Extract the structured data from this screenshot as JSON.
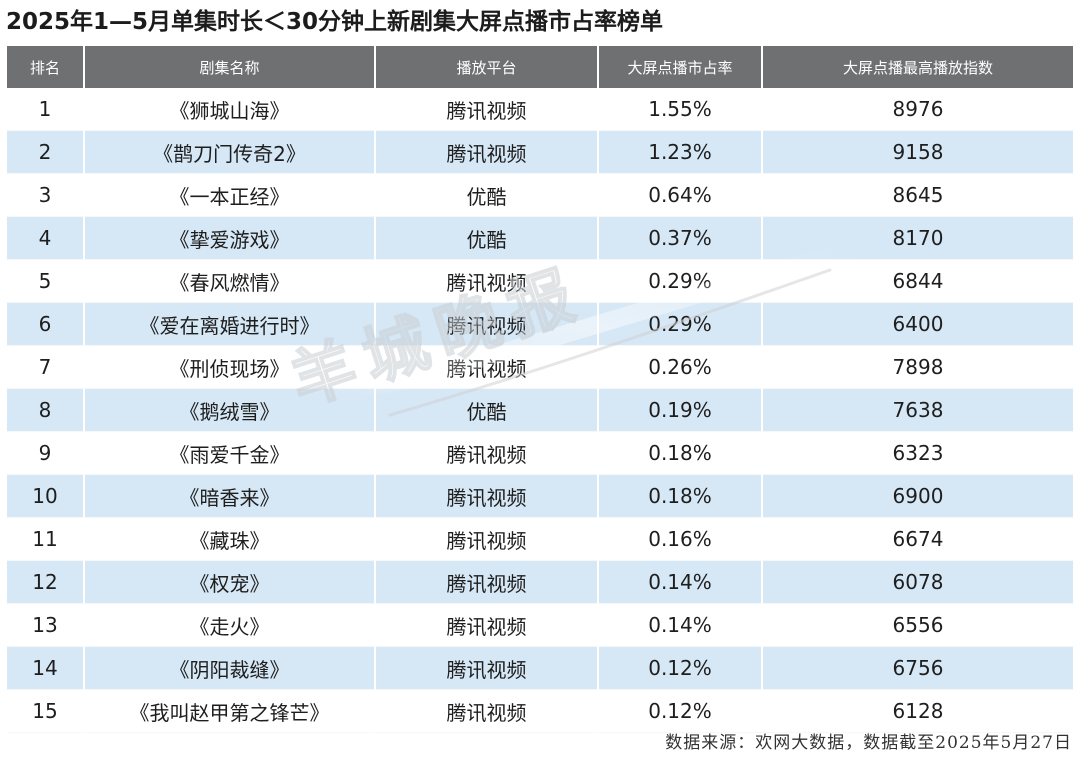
{
  "title": "2025年1—5月单集时长＜30分钟上新剧集大屏点播市占率榜单",
  "table": {
    "headers": {
      "rank": "排名",
      "name": "剧集名称",
      "platform": "播放平台",
      "share": "大屏点播市占率",
      "index": "大屏点播最高播放指数"
    },
    "rows": [
      {
        "rank": "1",
        "name": "《狮城山海》",
        "platform": "腾讯视频",
        "share": "1.55%",
        "index": "8976"
      },
      {
        "rank": "2",
        "name": "《鹊刀门传奇2》",
        "platform": "腾讯视频",
        "share": "1.23%",
        "index": "9158"
      },
      {
        "rank": "3",
        "name": "《一本正经》",
        "platform": "优酷",
        "share": "0.64%",
        "index": "8645"
      },
      {
        "rank": "4",
        "name": "《挚爱游戏》",
        "platform": "优酷",
        "share": "0.37%",
        "index": "8170"
      },
      {
        "rank": "5",
        "name": "《春风燃情》",
        "platform": "腾讯视频",
        "share": "0.29%",
        "index": "6844"
      },
      {
        "rank": "6",
        "name": "《爱在离婚进行时》",
        "platform": "腾讯视频",
        "share": "0.29%",
        "index": "6400"
      },
      {
        "rank": "7",
        "name": "《刑侦现场》",
        "platform": "腾讯视频",
        "share": "0.26%",
        "index": "7898"
      },
      {
        "rank": "8",
        "name": "《鹅绒雪》",
        "platform": "优酷",
        "share": "0.19%",
        "index": "7638"
      },
      {
        "rank": "9",
        "name": "《雨爱千金》",
        "platform": "腾讯视频",
        "share": "0.18%",
        "index": "6323"
      },
      {
        "rank": "10",
        "name": "《暗香来》",
        "platform": "腾讯视频",
        "share": "0.18%",
        "index": "6900"
      },
      {
        "rank": "11",
        "name": "《藏珠》",
        "platform": "腾讯视频",
        "share": "0.16%",
        "index": "6674"
      },
      {
        "rank": "12",
        "name": "《权宠》",
        "platform": "腾讯视频",
        "share": "0.14%",
        "index": "6078"
      },
      {
        "rank": "13",
        "name": "《走火》",
        "platform": "腾讯视频",
        "share": "0.14%",
        "index": "6556"
      },
      {
        "rank": "14",
        "name": "《阴阳裁缝》",
        "platform": "腾讯视频",
        "share": "0.12%",
        "index": "6756"
      },
      {
        "rank": "15",
        "name": "《我叫赵甲第之锋芒》",
        "platform": "腾讯视频",
        "share": "0.12%",
        "index": "6128"
      }
    ]
  },
  "footnote": "数据来源：欢网大数据，数据截至2025年5月27日",
  "watermark_text": "羊城晚报",
  "colors": {
    "header_bg": "#6f7072",
    "header_text": "#ffffff",
    "row_alt_bg": "#d6e7f5",
    "row_bg": "#ffffff"
  }
}
